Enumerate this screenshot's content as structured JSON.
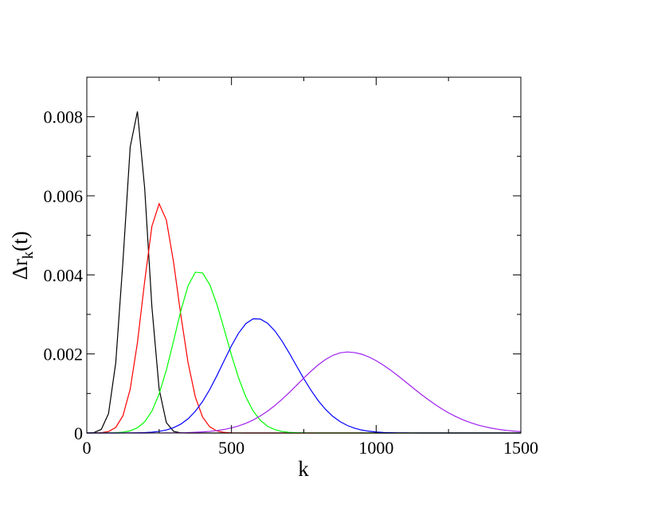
{
  "chart_data": {
    "type": "line",
    "xlabel": "k",
    "ylabel": [
      "Δr",
      "k",
      "(t)"
    ],
    "x": [
      0,
      25,
      50,
      75,
      100,
      125,
      150,
      175,
      200,
      225,
      250,
      275,
      300,
      325,
      350,
      375,
      400,
      425,
      450,
      475,
      500,
      525,
      550,
      575,
      600,
      625,
      650,
      675,
      700,
      725,
      750,
      775,
      800,
      825,
      850,
      875,
      900,
      925,
      950,
      975,
      1000,
      1025,
      1050,
      1075,
      1100,
      1125,
      1150,
      1175,
      1200,
      1225,
      1250,
      1275,
      1300,
      1325,
      1350,
      1375,
      1400,
      1425,
      1450,
      1475,
      1500
    ],
    "series": [
      {
        "color": "#000000",
        "values": [
          1e-06,
          1.15e-05,
          9.1e-05,
          0.000489,
          0.001774,
          0.004354,
          0.007237,
          0.008134,
          0.006189,
          0.003187,
          0.001109,
          0.000262,
          4.18e-05,
          4.5e-06,
          0,
          0,
          0,
          0,
          0,
          0,
          0,
          0,
          0,
          0,
          0,
          0,
          0,
          0,
          0,
          0,
          0,
          0,
          0,
          0,
          0,
          0,
          0,
          0,
          0,
          0,
          0,
          0,
          0,
          0,
          0,
          0,
          0,
          0,
          0,
          0,
          0,
          0,
          0,
          0,
          0,
          0,
          0,
          0,
          0,
          0,
          0
        ]
      },
      {
        "color": "#ff0000",
        "values": [
          0,
          1.3e-06,
          7.8e-06,
          3.68e-05,
          0.000141,
          0.000439,
          0.001111,
          0.002288,
          0.003837,
          0.005231,
          0.0058,
          0.005386,
          0.004314,
          0.00298,
          0.001777,
          0.000913,
          0.000404,
          0.000155,
          5.1e-05,
          1.45e-05,
          3.5e-06,
          8e-07,
          0,
          0,
          0,
          0,
          0,
          0,
          0,
          0,
          0,
          0,
          0,
          0,
          0,
          0,
          0,
          0,
          0,
          0,
          0,
          0,
          0,
          0,
          0,
          0,
          0,
          0,
          0,
          0,
          0,
          0,
          0,
          0,
          0,
          0,
          0,
          0,
          0,
          0,
          0
        ]
      },
      {
        "color": "#00ff00",
        "values": [
          0,
          2e-07,
          6e-07,
          2.3e-06,
          7.2e-06,
          2.09e-05,
          5.5e-05,
          0.000131,
          0.000283,
          0.000555,
          0.000987,
          0.001593,
          0.002331,
          0.003095,
          0.003726,
          0.004068,
          0.004049,
          0.003752,
          0.003245,
          0.002618,
          0.00197,
          0.001384,
          0.000907,
          0.000555,
          0.000317,
          0.000169,
          8.38e-05,
          3.89e-05,
          1.68e-05,
          6.8e-06,
          2.6e-06,
          9e-07,
          0,
          0,
          0,
          0,
          0,
          0,
          0,
          0,
          0,
          0,
          0,
          0,
          0,
          0,
          0,
          0,
          0,
          0,
          0,
          0,
          0,
          0,
          0,
          0,
          0,
          0,
          0,
          0,
          0
        ]
      },
      {
        "color": "#0000ff",
        "values": [
          0,
          0,
          1e-07,
          2e-07,
          4e-07,
          1e-06,
          2.3e-06,
          5e-06,
          1.07e-05,
          2.16e-05,
          4.16e-05,
          7.67e-05,
          0.000135,
          0.000225,
          0.00036,
          0.000548,
          0.000795,
          0.001102,
          0.001456,
          0.001835,
          0.002207,
          0.002531,
          0.002769,
          0.002889,
          0.002882,
          0.002775,
          0.002583,
          0.002322,
          0.002017,
          0.001694,
          0.001374,
          0.001078,
          0.000816,
          0.000597,
          0.000422,
          0.000289,
          0.000191,
          0.000122,
          7.51e-05,
          4.47e-05,
          2.57e-05,
          1.43e-05,
          7.7e-06,
          4e-06,
          2e-06,
          1e-06,
          5e-07,
          2e-07,
          0,
          0,
          0,
          0,
          0,
          0,
          0,
          0,
          0,
          0,
          0,
          0,
          0
        ]
      },
      {
        "color": "#a020f0",
        "values": [
          0,
          0,
          0,
          0,
          0,
          0,
          0,
          2e-07,
          4e-07,
          8e-07,
          1.4e-06,
          2.4e-06,
          4e-06,
          6.7e-06,
          1.09e-05,
          1.74e-05,
          2.71e-05,
          4.14e-05,
          6.18e-05,
          9e-05,
          0.000129,
          0.00018,
          0.000246,
          0.000329,
          0.000432,
          0.000554,
          0.000695,
          0.000854,
          0.001026,
          0.001207,
          0.00139,
          0.001565,
          0.001724,
          0.00186,
          0.001963,
          0.002028,
          0.00205,
          0.002035,
          0.001993,
          0.001923,
          0.00183,
          0.001717,
          0.001589,
          0.001449,
          0.001303,
          0.001155,
          0.001009,
          0.00087,
          0.000739,
          0.000619,
          0.000511,
          0.000416,
          0.000334,
          0.000265,
          0.000206,
          0.000159,
          0.000121,
          9e-05,
          6.64e-05,
          4.83e-05,
          3.47e-05
        ]
      }
    ],
    "xlim": [
      0,
      1500
    ],
    "xticks": [
      0,
      500,
      1000,
      1500
    ],
    "xminorticks": [
      250,
      750,
      1250
    ],
    "ylim": [
      0,
      0.009
    ],
    "yticks": [
      0,
      0.002,
      0.004,
      0.006,
      0.008
    ],
    "yminorticks": [
      0.001,
      0.003,
      0.005,
      0.007
    ],
    "grid": false
  }
}
